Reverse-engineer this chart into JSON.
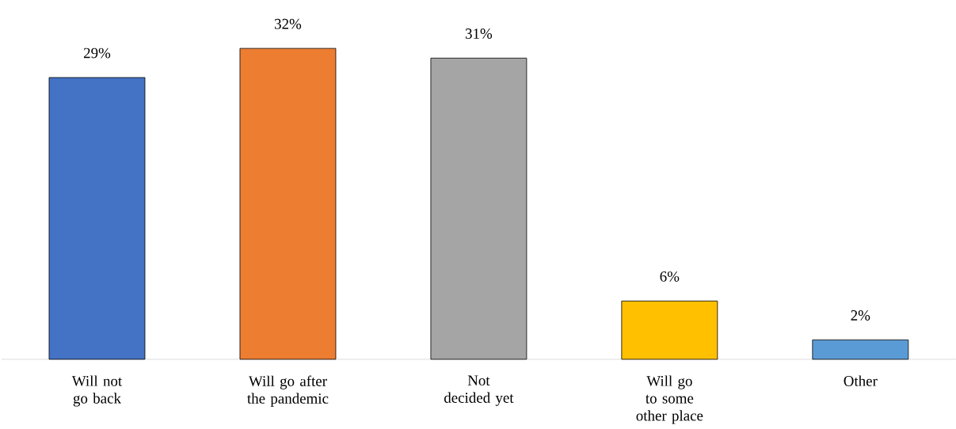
{
  "chart_data": {
    "type": "bar",
    "categories": [
      "Will not go back",
      "Will go after the pandemic",
      "Not decided yet",
      "Will go to some other place",
      "Other"
    ],
    "values": [
      29,
      32,
      31,
      6,
      2
    ],
    "colors": [
      "#4472c4",
      "#ed7d31",
      "#a5a5a5",
      "#ffc000",
      "#5b9bd5"
    ],
    "value_labels": [
      "29%",
      "32%",
      "31%",
      "6%",
      "2%"
    ],
    "tick_labels": "x"
  }
}
